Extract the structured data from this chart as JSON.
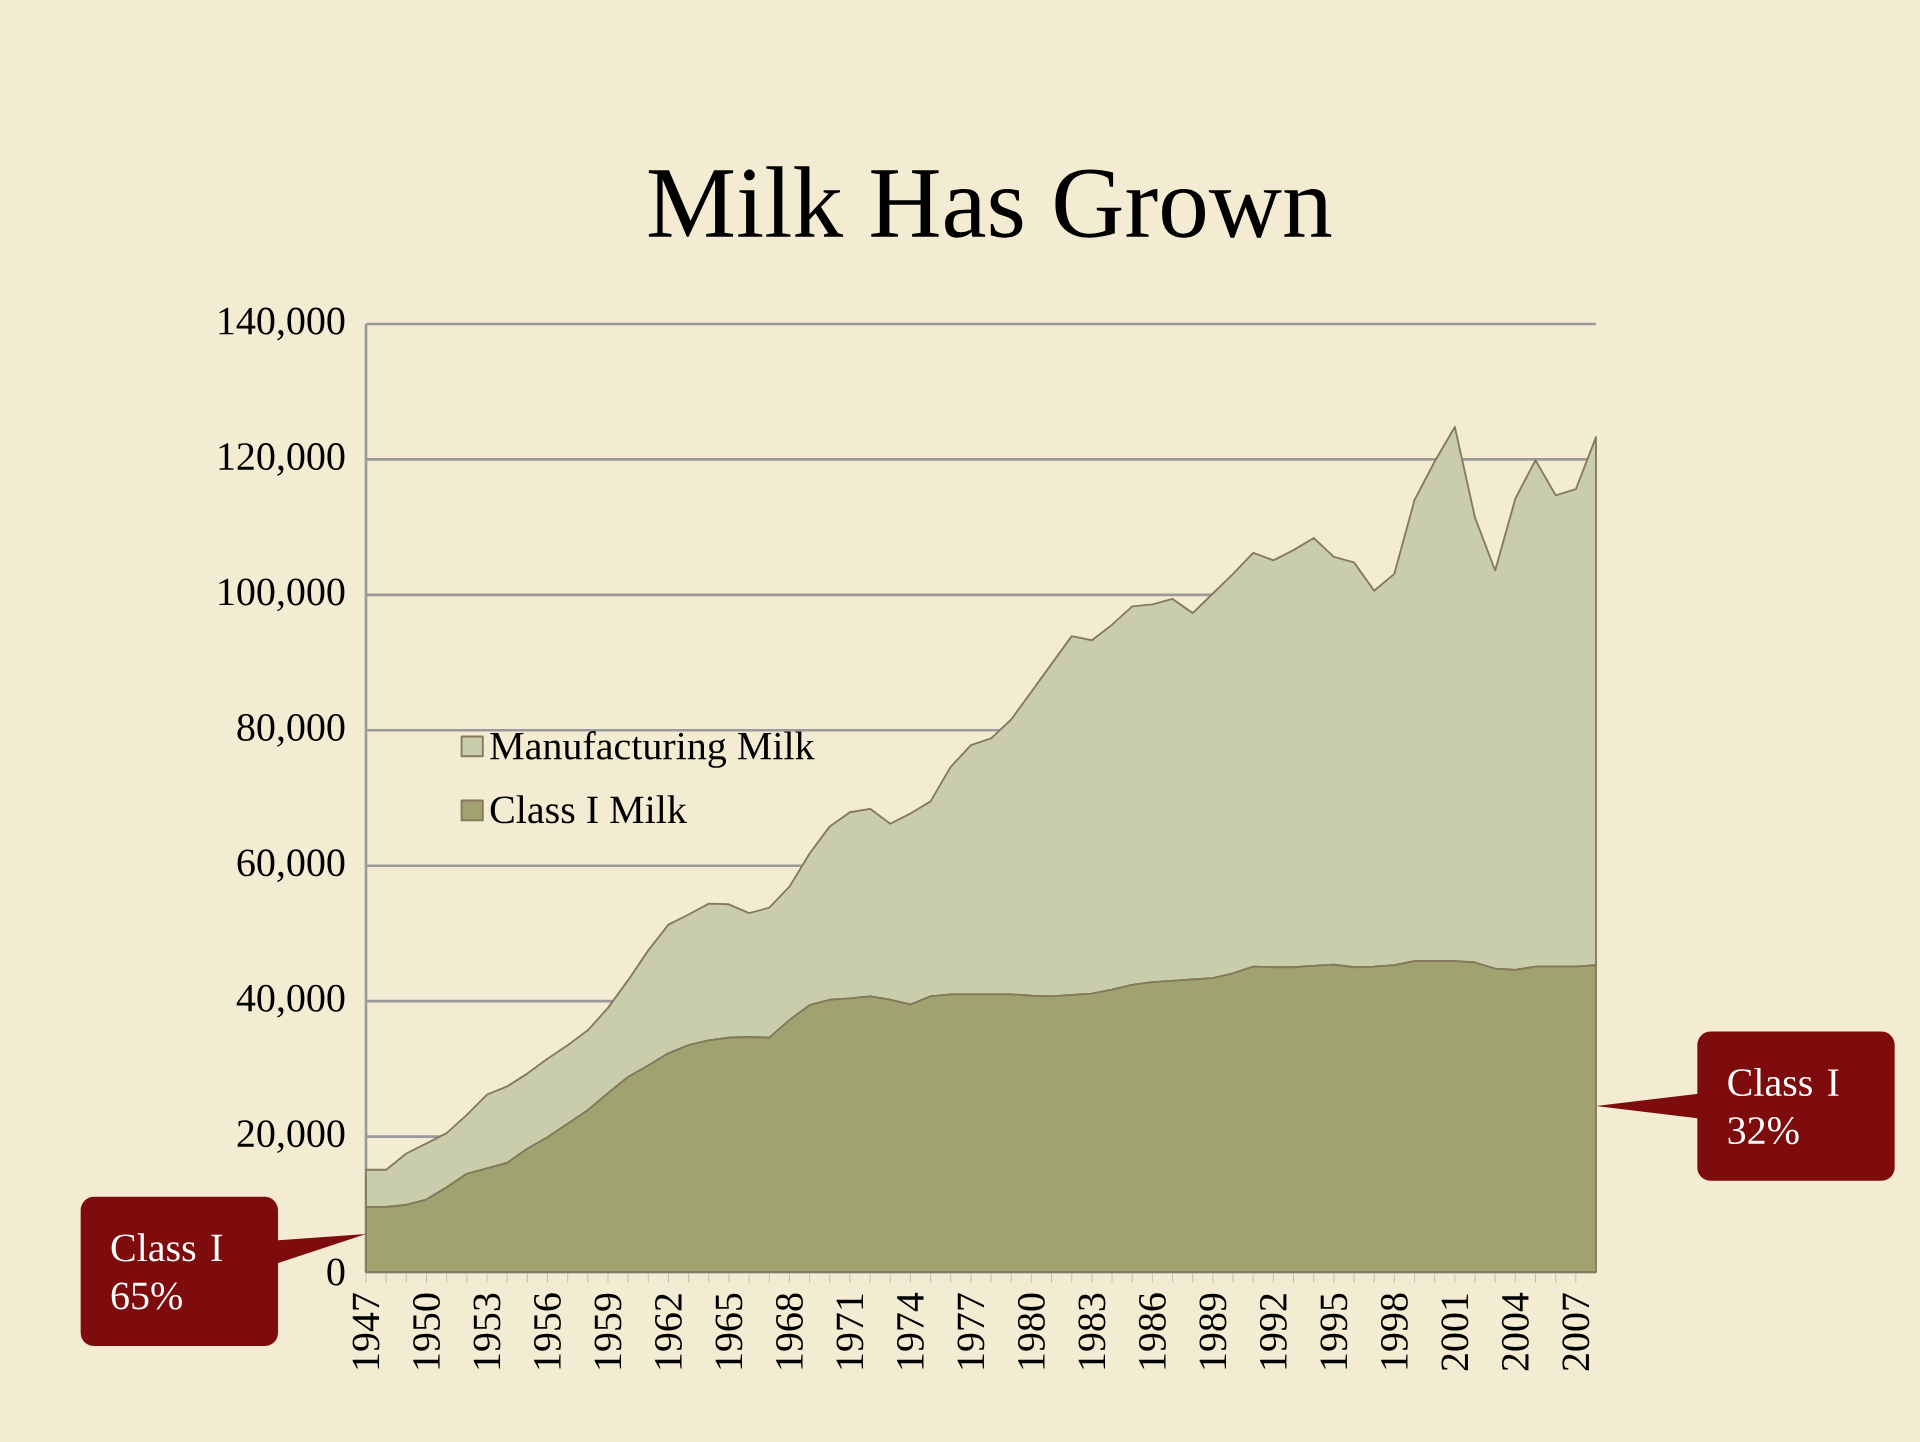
{
  "chart_data": {
    "type": "area",
    "title": "Milk Has Grown",
    "stacked": true,
    "x": [
      1947,
      1948,
      1949,
      1950,
      1951,
      1952,
      1953,
      1954,
      1955,
      1956,
      1957,
      1958,
      1959,
      1960,
      1961,
      1962,
      1963,
      1964,
      1965,
      1966,
      1967,
      1968,
      1969,
      1970,
      1971,
      1972,
      1973,
      1974,
      1975,
      1976,
      1977,
      1978,
      1979,
      1980,
      1981,
      1982,
      1983,
      1984,
      1985,
      1986,
      1987,
      1988,
      1989,
      1990,
      1991,
      1992,
      1993,
      1994,
      1995,
      1996,
      1997,
      1998,
      1999,
      2000,
      2001,
      2002,
      2003,
      2004,
      2005,
      2006,
      2007,
      2008
    ],
    "series": [
      {
        "name": "Class I Milk",
        "color": "#a0a36f",
        "values": [
          9600,
          9600,
          9900,
          10700,
          12500,
          14500,
          15300,
          16100,
          18200,
          19900,
          21900,
          23900,
          26400,
          28800,
          30500,
          32300,
          33500,
          34200,
          34600,
          34700,
          34600,
          37200,
          39400,
          40200,
          40400,
          40700,
          40200,
          39500,
          40700,
          41000,
          41000,
          41000,
          41000,
          40800,
          40700,
          40900,
          41100,
          41700,
          42400,
          42800,
          43000,
          43200,
          43400,
          44100,
          45100,
          45000,
          45000,
          45200,
          45400,
          45000,
          45100,
          45300,
          45900,
          45900,
          45900,
          45700,
          44800,
          44600,
          45100,
          45100,
          45100,
          45300
        ]
      },
      {
        "name": "Manufacturing Milk",
        "color": "#c9cdab",
        "values": [
          5500,
          5500,
          7600,
          8300,
          8000,
          8700,
          10900,
          11300,
          11100,
          11600,
          11600,
          11800,
          12600,
          14300,
          17000,
          19000,
          19300,
          20200,
          19700,
          18300,
          19200,
          19700,
          22400,
          25600,
          27500,
          27700,
          26000,
          28200,
          28800,
          33600,
          36800,
          37800,
          40600,
          44900,
          49100,
          53000,
          52200,
          53900,
          55900,
          55800,
          56400,
          54100,
          56800,
          59000,
          61100,
          60100,
          61600,
          63200,
          60200,
          59800,
          55500,
          57800,
          68100,
          73800,
          78900,
          65700,
          58800,
          69600,
          74800,
          69600,
          70500,
          78000
        ]
      }
    ],
    "xlim": [
      1947,
      2008
    ],
    "xticks": [
      1947,
      1950,
      1953,
      1956,
      1959,
      1962,
      1965,
      1968,
      1971,
      1974,
      1977,
      1980,
      1983,
      1986,
      1989,
      1992,
      1995,
      1998,
      2001,
      2004,
      2007
    ],
    "ylim": [
      0,
      140000
    ],
    "yticks": [
      0,
      {
        "value": 20000,
        "label": "20,000"
      },
      {
        "value": 40000,
        "label": "40,000"
      },
      {
        "value": 60000,
        "label": "60,000"
      },
      {
        "value": 80000,
        "label": "80,000"
      },
      {
        "value": 100000,
        "label": "100,000"
      },
      {
        "value": 120000,
        "label": "120,000"
      },
      {
        "value": 140000,
        "label": "140,000"
      }
    ],
    "grid": "y",
    "legend": "left",
    "annotations": [
      {
        "text": "Class I 65%",
        "x": 1947,
        "y": 5600
      },
      {
        "text": "Class I 32%",
        "x": 2008,
        "y": 24500
      }
    ]
  }
}
